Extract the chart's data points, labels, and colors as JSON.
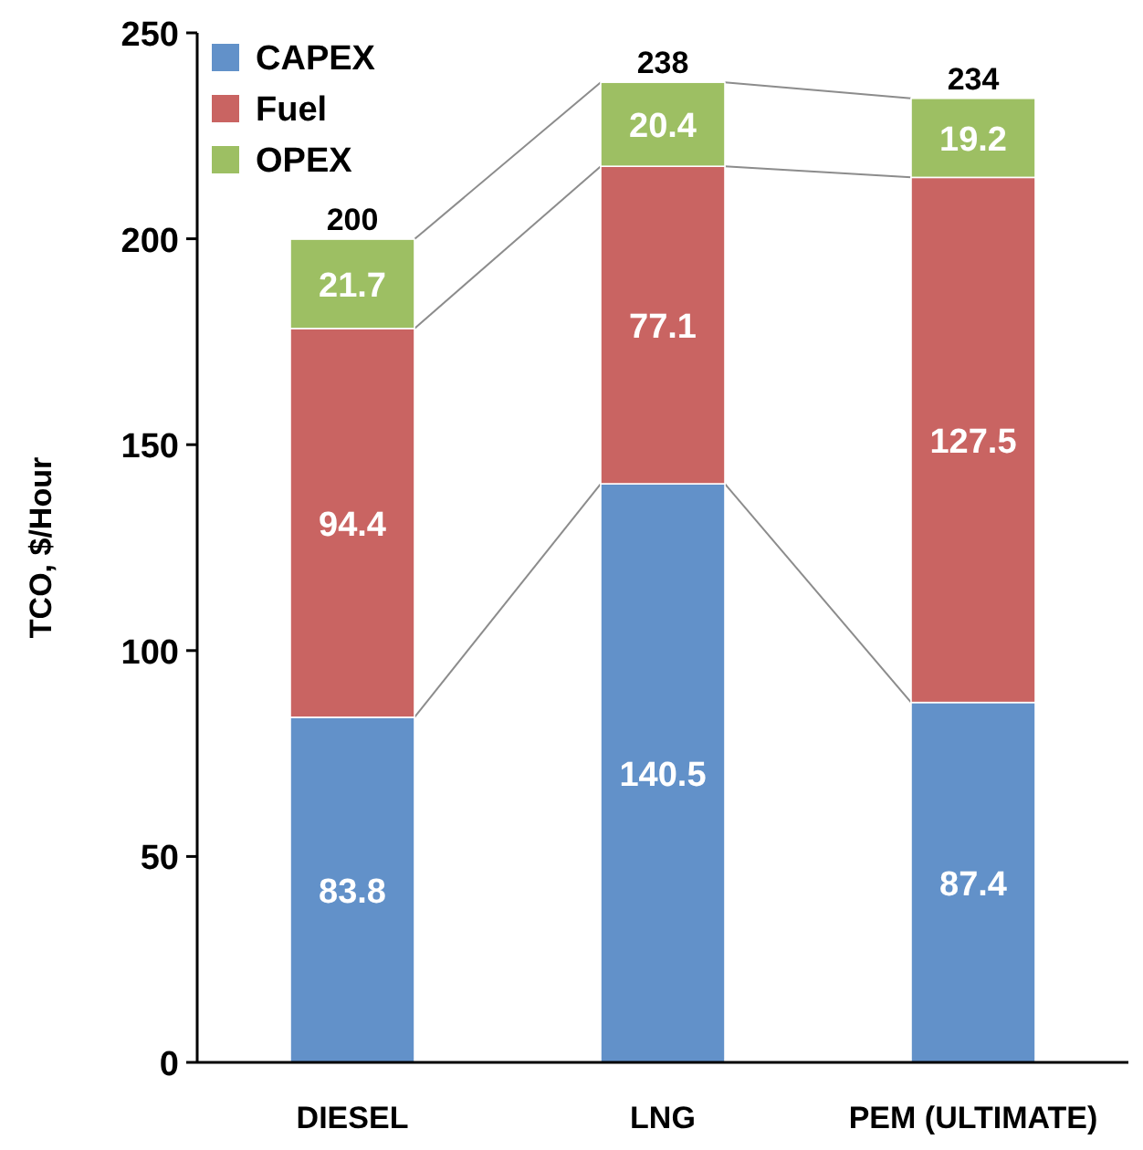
{
  "chart_data": {
    "type": "bar",
    "stacked": true,
    "ylabel": "TCO, $/Hour",
    "categories": [
      "DIESEL",
      "LNG",
      "PEM (ULTIMATE)"
    ],
    "series": [
      {
        "name": "CAPEX",
        "color": "#6291c9",
        "values": [
          83.8,
          140.5,
          87.4
        ]
      },
      {
        "name": "Fuel",
        "color": "#c96462",
        "values": [
          94.4,
          77.1,
          127.5
        ]
      },
      {
        "name": "OPEX",
        "color": "#9dbf63",
        "values": [
          21.7,
          20.4,
          19.2
        ]
      }
    ],
    "ylim": [
      0,
      250
    ],
    "yticks": [
      0,
      50,
      100,
      150,
      200,
      250
    ],
    "grid": false,
    "legend": "top left",
    "data_labels": true,
    "totals": [
      "200",
      "238",
      "234"
    ]
  }
}
